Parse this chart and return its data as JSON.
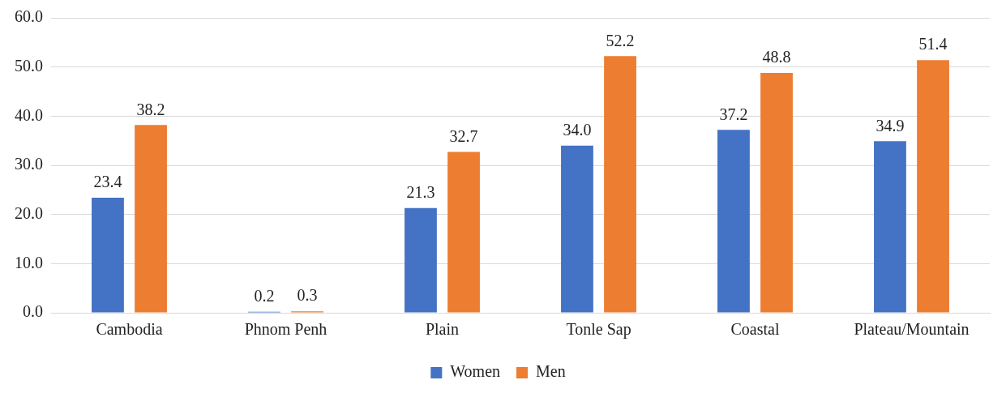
{
  "chart_data": {
    "type": "bar",
    "categories": [
      "Cambodia",
      "Phnom Penh",
      "Plain",
      "Tonle Sap",
      "Coastal",
      "Plateau/Mountain"
    ],
    "series": [
      {
        "name": "Women",
        "color": "#4472c4",
        "values": [
          23.4,
          0.2,
          21.3,
          34.0,
          37.2,
          34.9
        ],
        "value_labels": [
          "23.4",
          "0.2",
          "21.3",
          "34.0",
          "37.2",
          "34.9"
        ]
      },
      {
        "name": "Men",
        "color": "#ed7d31",
        "values": [
          38.2,
          0.3,
          32.7,
          52.2,
          48.8,
          51.4
        ],
        "value_labels": [
          "38.2",
          "0.3",
          "32.7",
          "52.2",
          "48.8",
          "51.4"
        ]
      }
    ],
    "ylim": [
      0,
      60
    ],
    "yticks": [
      {
        "value": 0,
        "label": "0.0"
      },
      {
        "value": 10,
        "label": "10.0"
      },
      {
        "value": 20,
        "label": "20.0"
      },
      {
        "value": 30,
        "label": "30.0"
      },
      {
        "value": 40,
        "label": "40.0"
      },
      {
        "value": 50,
        "label": "50.0"
      },
      {
        "value": 60,
        "label": "60.0"
      }
    ],
    "grid": "y",
    "legend": "bottom"
  }
}
